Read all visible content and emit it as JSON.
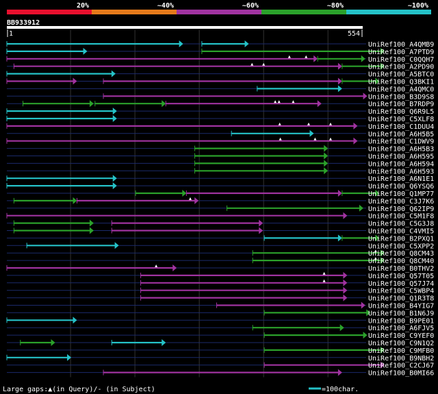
{
  "chart_data": {
    "type": "alignment-overview",
    "query_id": "BB933912",
    "query_start": 1,
    "query_length": 554,
    "identity_bins": [
      {
        "label": "20%",
        "color": "#e8102e"
      },
      {
        "label": "~40%",
        "color": "#e57a1b"
      },
      {
        "label": "~60%",
        "color": "#a033a0"
      },
      {
        "label": "~80%",
        "color": "#2ba12b"
      },
      {
        "label": "~100%",
        "color": "#25c2c8"
      }
    ],
    "hits": [
      {
        "name": "UniRef100_A4QMB9",
        "segs": [
          {
            "s": 1,
            "e": 275,
            "c": "cyan"
          },
          {
            "s": 304,
            "e": 377,
            "c": "cyan"
          }
        ]
      },
      {
        "name": "UniRef100_A7PTD9",
        "segs": [
          {
            "s": 1,
            "e": 126,
            "c": "cyan"
          },
          {
            "s": 304,
            "e": 588,
            "c": "green"
          }
        ],
        "gaps": []
      },
      {
        "name": "UniRef100_C0QQH7",
        "segs": [
          {
            "s": 1,
            "e": 484,
            "c": "purple"
          },
          {
            "s": 484,
            "e": 558,
            "c": "green"
          }
        ],
        "gaps": [
          {
            "x": 440,
            "t": "q"
          },
          {
            "x": 466,
            "t": "q"
          }
        ]
      },
      {
        "name": "UniRef100_A2PD90",
        "segs": [
          {
            "s": 12,
            "e": 522,
            "c": "purple"
          },
          {
            "s": 522,
            "e": 588,
            "c": "green"
          }
        ],
        "gaps": [
          {
            "x": 382,
            "t": "q"
          },
          {
            "x": 400,
            "t": "q"
          }
        ]
      },
      {
        "name": "UniRef100_A5BTC0",
        "segs": [
          {
            "s": 1,
            "e": 170,
            "c": "cyan"
          }
        ]
      },
      {
        "name": "UniRef100_Q3BKI1",
        "segs": [
          {
            "s": 1,
            "e": 110,
            "c": "purple"
          },
          {
            "s": 151,
            "e": 522,
            "c": "purple"
          },
          {
            "s": 522,
            "e": 580,
            "c": "green"
          }
        ]
      },
      {
        "name": "UniRef100_A4QMC0",
        "segs": [
          {
            "s": 390,
            "e": 522,
            "c": "cyan"
          }
        ]
      },
      {
        "name": "UniRef100_B3D9S8",
        "segs": [
          {
            "s": 151,
            "e": 561,
            "c": "purple"
          }
        ]
      },
      {
        "name": "UniRef100_B7RDP9",
        "segs": [
          {
            "s": 26,
            "e": 136,
            "c": "green"
          },
          {
            "s": 138,
            "e": 248,
            "c": "green"
          },
          {
            "s": 248,
            "e": 490,
            "c": "purple"
          }
        ],
        "gaps": [
          {
            "x": 418,
            "t": "q"
          },
          {
            "x": 424,
            "t": "q"
          },
          {
            "x": 446,
            "t": "q"
          }
        ]
      },
      {
        "name": "UniRef100_Q6R9L5",
        "segs": [
          {
            "s": 1,
            "e": 172,
            "c": "cyan"
          }
        ]
      },
      {
        "name": "UniRef100_C5XLF8",
        "segs": [
          {
            "s": 1,
            "e": 172,
            "c": "cyan"
          }
        ]
      },
      {
        "name": "UniRef100_C1DUU4",
        "segs": [
          {
            "s": 1,
            "e": 546,
            "c": "purple"
          }
        ],
        "gaps": [
          {
            "x": 425,
            "t": "q"
          },
          {
            "x": 470,
            "t": "q"
          },
          {
            "x": 504,
            "t": "q"
          }
        ]
      },
      {
        "name": "UniRef100_A6H5B5",
        "segs": [
          {
            "s": 350,
            "e": 478,
            "c": "cyan"
          }
        ]
      },
      {
        "name": "UniRef100_C1DWV9",
        "segs": [
          {
            "s": 1,
            "e": 546,
            "c": "purple"
          }
        ],
        "gaps": [
          {
            "x": 426,
            "t": "q"
          },
          {
            "x": 480,
            "t": "q"
          },
          {
            "x": 504,
            "t": "q"
          }
        ]
      },
      {
        "name": "UniRef100_A6H5B3",
        "segs": [
          {
            "s": 293,
            "e": 500,
            "c": "green"
          }
        ]
      },
      {
        "name": "UniRef100_A6H595",
        "segs": [
          {
            "s": 293,
            "e": 500,
            "c": "green"
          }
        ]
      },
      {
        "name": "UniRef100_A6H594",
        "segs": [
          {
            "s": 293,
            "e": 500,
            "c": "green"
          }
        ]
      },
      {
        "name": "UniRef100_A6H593",
        "segs": [
          {
            "s": 293,
            "e": 500,
            "c": "green"
          }
        ]
      },
      {
        "name": "UniRef100_A6N1E1",
        "segs": [
          {
            "s": 1,
            "e": 172,
            "c": "cyan"
          }
        ]
      },
      {
        "name": "UniRef100_Q6YSQ6",
        "segs": [
          {
            "s": 1,
            "e": 172,
            "c": "cyan"
          }
        ]
      },
      {
        "name": "UniRef100_Q1MP77",
        "segs": [
          {
            "s": 201,
            "e": 280,
            "c": "green"
          },
          {
            "s": 280,
            "e": 522,
            "c": "purple"
          },
          {
            "s": 522,
            "e": 580,
            "c": "green"
          }
        ]
      },
      {
        "name": "UniRef100_C3J7K6",
        "segs": [
          {
            "s": 12,
            "e": 110,
            "c": "green"
          },
          {
            "s": 110,
            "e": 299,
            "c": "purple"
          }
        ],
        "gaps": [
          {
            "x": 286,
            "t": "q"
          }
        ]
      },
      {
        "name": "UniRef100_Q62IP9",
        "segs": [
          {
            "s": 343,
            "e": 555,
            "c": "green"
          }
        ]
      },
      {
        "name": "UniRef100_C5M1F8",
        "segs": [
          {
            "s": 1,
            "e": 530,
            "c": "purple"
          }
        ]
      },
      {
        "name": "UniRef100_C5G3J8",
        "segs": [
          {
            "s": 12,
            "e": 136,
            "c": "green"
          },
          {
            "s": 164,
            "e": 399,
            "c": "purple"
          }
        ]
      },
      {
        "name": "UniRef100_C4VMI5",
        "segs": [
          {
            "s": 12,
            "e": 136,
            "c": "green"
          },
          {
            "s": 164,
            "e": 399,
            "c": "purple"
          }
        ]
      },
      {
        "name": "UniRef100_B2PXQ1",
        "segs": [
          {
            "s": 401,
            "e": 522,
            "c": "cyan"
          },
          {
            "s": 522,
            "e": 580,
            "c": "green"
          }
        ]
      },
      {
        "name": "UniRef100_C5XPP2",
        "segs": [
          {
            "s": 32,
            "e": 175,
            "c": "cyan"
          }
        ]
      },
      {
        "name": "UniRef100_Q8CM43",
        "segs": [
          {
            "s": 383,
            "e": 588,
            "c": "green"
          }
        ],
        "gaps": [
          {
            "x": 574,
            "t": "q"
          }
        ]
      },
      {
        "name": "UniRef100_Q8CM40",
        "segs": [
          {
            "s": 383,
            "e": 588,
            "c": "green"
          }
        ],
        "gaps": [
          {
            "x": 574,
            "t": "q"
          }
        ]
      },
      {
        "name": "UniRef100_B0THV2",
        "segs": [
          {
            "s": 1,
            "e": 265,
            "c": "purple"
          }
        ],
        "gaps": [
          {
            "x": 233,
            "t": "q"
          }
        ]
      },
      {
        "name": "UniRef100_Q57T05",
        "segs": [
          {
            "s": 209,
            "e": 530,
            "c": "purple"
          }
        ],
        "gaps": [
          {
            "x": 494,
            "t": "q"
          }
        ]
      },
      {
        "name": "UniRef100_Q57J74",
        "segs": [
          {
            "s": 209,
            "e": 530,
            "c": "purple"
          }
        ],
        "gaps": [
          {
            "x": 494,
            "t": "q"
          }
        ]
      },
      {
        "name": "UniRef100_C5WBP4",
        "segs": [
          {
            "s": 209,
            "e": 530,
            "c": "purple"
          }
        ]
      },
      {
        "name": "UniRef100_Q1R3T8",
        "segs": [
          {
            "s": 209,
            "e": 530,
            "c": "purple"
          }
        ]
      },
      {
        "name": "UniRef100_B4YIG7",
        "segs": [
          {
            "s": 327,
            "e": 558,
            "c": "purple"
          }
        ]
      },
      {
        "name": "UniRef100_B1N6J9",
        "segs": [
          {
            "s": 401,
            "e": 566,
            "c": "green"
          }
        ]
      },
      {
        "name": "UniRef100_B9PE01",
        "segs": [
          {
            "s": 1,
            "e": 110,
            "c": "cyan"
          }
        ]
      },
      {
        "name": "UniRef100_A6FJV5",
        "segs": [
          {
            "s": 383,
            "e": 525,
            "c": "green"
          }
        ]
      },
      {
        "name": "UniRef100_C9YEF0",
        "segs": [
          {
            "s": 401,
            "e": 561,
            "c": "green"
          }
        ]
      },
      {
        "name": "UniRef100_C9N1Q2",
        "segs": [
          {
            "s": 22,
            "e": 76,
            "c": "green"
          },
          {
            "s": 164,
            "e": 248,
            "c": "cyan"
          }
        ]
      },
      {
        "name": "UniRef100_C9MFB0",
        "segs": [
          {
            "s": 401,
            "e": 588,
            "c": "green"
          }
        ]
      },
      {
        "name": "UniRef100_B9NBH2",
        "segs": [
          {
            "s": 1,
            "e": 101,
            "c": "cyan"
          }
        ]
      },
      {
        "name": "UniRef100_C2CJ67",
        "segs": [
          {
            "s": 401,
            "e": 588,
            "c": "purple"
          }
        ]
      },
      {
        "name": "UniRef100_B0MI66",
        "segs": [
          {
            "s": 151,
            "e": 522,
            "c": "purple"
          }
        ]
      }
    ]
  },
  "colors": {
    "cyan": "#25c2c8",
    "green": "#2ba12b",
    "purple": "#a033a0",
    "gridline": "#333",
    "rowline": "#1b2a6b"
  },
  "legend": {
    "gaps_text": "Large gaps:▲(in Query)/- (in Subject)",
    "scale_text": "=100char."
  }
}
